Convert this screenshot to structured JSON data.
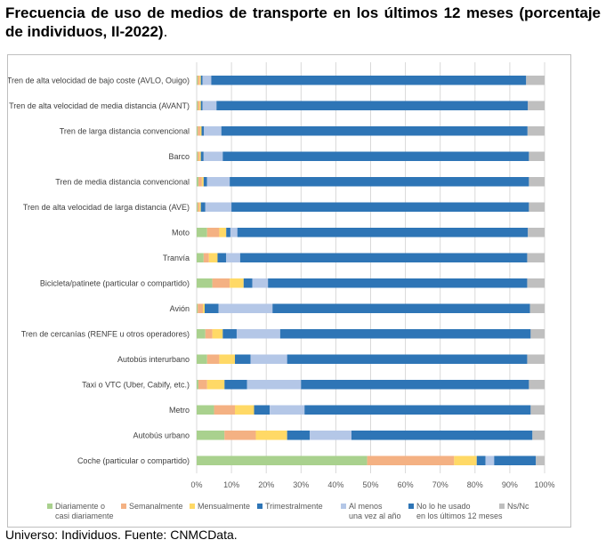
{
  "title": "Frecuencia de uso de medios de transporte en los últimos 12 meses (porcentaje de individuos, II-2022)",
  "title_suffix": ".",
  "source": "Universo: Individuos. Fuente: CNMCData.",
  "colors": [
    "#a9d18e",
    "#f4b183",
    "#ffd966",
    "#2e75b6",
    "#b4c7e7",
    "#2e75b6",
    "#bfbfbf"
  ],
  "chart_data": {
    "type": "bar",
    "orientation": "horizontal",
    "stacked": true,
    "xlim": [
      0,
      100
    ],
    "xticks": [
      "0%",
      "10%",
      "20%",
      "30%",
      "40%",
      "50%",
      "60%",
      "70%",
      "80%",
      "90%",
      "100%"
    ],
    "grid": true,
    "legend_position": "bottom",
    "categories": [
      "Tren de alta velocidad de bajo coste (AVLO, Ouigo)",
      "Tren de alta velocidad de media distancia (AVANT)",
      "Tren de larga distancia convencional",
      "Barco",
      "Tren de media distancia convencional",
      "Tren de alta velocidad de larga distancia (AVE)",
      "Moto",
      "Tranvía",
      "Bicicleta/patinete (particular o compartido)",
      "Avión",
      "Tren de cercanías (RENFE u otros operadores)",
      "Autobús interurbano",
      "Taxi o VTC (Uber, Cabify, etc.)",
      "Metro",
      "Autobús urbano",
      "Coche (particular o compartido)"
    ],
    "series": [
      {
        "name": "Diariamente o casi diariamente",
        "values": [
          0.3,
          0.3,
          0.3,
          0.3,
          0.5,
          0.3,
          3.0,
          2.0,
          4.5,
          0.3,
          2.5,
          3.0,
          0.5,
          5.0,
          8.0,
          49.0
        ]
      },
      {
        "name": "Semanalmente",
        "values": [
          0.5,
          0.5,
          0.7,
          0.5,
          1.0,
          0.5,
          3.5,
          1.5,
          5.0,
          1.5,
          2.0,
          3.5,
          2.5,
          6.0,
          9.0,
          25.0
        ]
      },
      {
        "name": "Mensualmente",
        "values": [
          0.4,
          0.4,
          0.4,
          0.4,
          0.5,
          0.4,
          2.0,
          2.5,
          4.0,
          0.5,
          3.0,
          4.5,
          5.0,
          5.5,
          9.0,
          6.5
        ]
      },
      {
        "name": "Trimestralmente",
        "values": [
          0.5,
          0.5,
          0.7,
          0.8,
          1.0,
          1.3,
          1.2,
          2.5,
          2.5,
          4.0,
          4.0,
          4.5,
          6.5,
          4.5,
          6.5,
          2.5
        ]
      },
      {
        "name": "Al menos una vez al año",
        "values": [
          2.5,
          4.0,
          5.0,
          5.5,
          6.5,
          7.5,
          2.0,
          4.0,
          4.5,
          15.5,
          12.5,
          10.5,
          15.5,
          10.0,
          12.0,
          2.5
        ]
      },
      {
        "name": "No lo he usado en los últimos 12 meses",
        "values": [
          90.5,
          89.5,
          88.0,
          88.0,
          86.0,
          85.5,
          83.5,
          82.5,
          74.5,
          74.0,
          72.0,
          69.0,
          65.5,
          65.0,
          52.0,
          12.0
        ]
      },
      {
        "name": "Ns/Nc",
        "values": [
          5.3,
          4.8,
          4.9,
          4.5,
          4.5,
          4.5,
          4.8,
          5.0,
          5.0,
          4.2,
          4.0,
          5.0,
          4.5,
          4.0,
          3.5,
          2.5
        ]
      }
    ]
  }
}
